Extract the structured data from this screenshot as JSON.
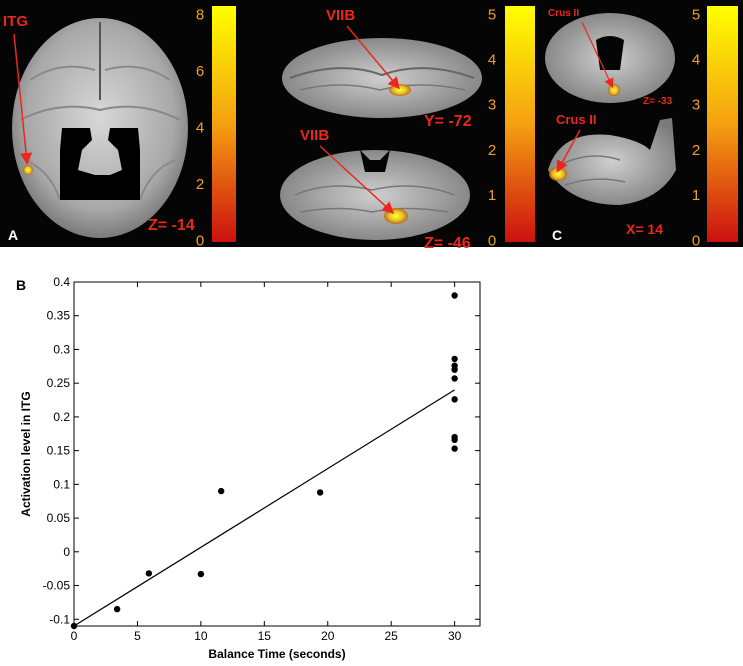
{
  "panel_a": {
    "letter": "A",
    "region_label": "ITG",
    "coord_label": "Z= -14",
    "colorbar_ticks": [
      "8",
      "6",
      "4",
      "2",
      "0"
    ],
    "colorbar_max": 8
  },
  "panel_middle": {
    "top_region": "VIIB",
    "top_coord": "Y= -72",
    "bottom_region": "VIIB",
    "bottom_coord": "Z= -46",
    "colorbar_ticks": [
      "5",
      "4",
      "3",
      "2",
      "1",
      "0"
    ],
    "colorbar_max": 5
  },
  "panel_c": {
    "letter": "C",
    "top_region": "Crus II",
    "top_coord": "Z= -33",
    "bottom_region": "Crus II",
    "bottom_coord": "X= 14",
    "colorbar_ticks": [
      "5",
      "4",
      "3",
      "2",
      "1",
      "0"
    ],
    "colorbar_max": 5
  },
  "panel_b": {
    "letter": "B"
  },
  "colors": {
    "background_dark": "#050505",
    "label_red": "#e8281e",
    "tick_orange": "#f0a020",
    "colorbar_top": "#ffff00",
    "colorbar_bottom": "#d01010"
  },
  "chart_data": {
    "type": "scatter",
    "xlabel": "Balance Time (seconds)",
    "ylabel": "Activation level in ITG",
    "xlim": [
      0,
      32
    ],
    "ylim": [
      -0.11,
      0.4
    ],
    "x_ticks": [
      0,
      5,
      10,
      15,
      20,
      25,
      30
    ],
    "y_ticks": [
      -0.1,
      -0.05,
      0,
      0.05,
      0.1,
      0.15,
      0.2,
      0.25,
      0.3,
      0.35,
      0.4
    ],
    "y_tick_labels": [
      "-0.1",
      "-0.05",
      "0",
      "0.05",
      "0.1",
      "0.15",
      "0.2",
      "0.25",
      "0.3",
      "0.35",
      "0.4"
    ],
    "x_tick_labels": [
      "0",
      "5",
      "10",
      "15",
      "20",
      "25",
      "30"
    ],
    "points": [
      {
        "x": 0,
        "y": -0.11
      },
      {
        "x": 3.4,
        "y": -0.085
      },
      {
        "x": 5.9,
        "y": -0.032
      },
      {
        "x": 10.0,
        "y": -0.033
      },
      {
        "x": 11.6,
        "y": 0.09
      },
      {
        "x": 19.4,
        "y": 0.088
      },
      {
        "x": 30,
        "y": 0.38
      },
      {
        "x": 30,
        "y": 0.286
      },
      {
        "x": 30,
        "y": 0.276
      },
      {
        "x": 30,
        "y": 0.27
      },
      {
        "x": 30,
        "y": 0.257
      },
      {
        "x": 30,
        "y": 0.226
      },
      {
        "x": 30,
        "y": 0.17
      },
      {
        "x": 30,
        "y": 0.166
      },
      {
        "x": 30,
        "y": 0.153
      }
    ],
    "fit_line": {
      "x": [
        0,
        30
      ],
      "y": [
        -0.11,
        0.24
      ]
    },
    "grid": false
  }
}
